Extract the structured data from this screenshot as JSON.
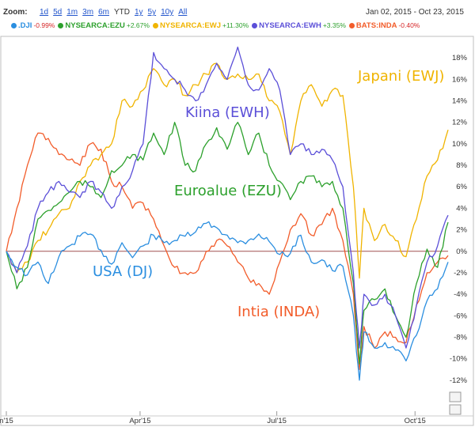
{
  "toolbar": {
    "zoom_label": "Zoom:",
    "zoom_options": [
      "1d",
      "5d",
      "1m",
      "3m",
      "6m",
      "YTD",
      "1y",
      "5y",
      "10y",
      "All"
    ],
    "active_option": "YTD",
    "date_range": "Jan 02, 2015  -  Oct 23, 2015"
  },
  "chart_data": {
    "type": "line",
    "x_ticks": [
      "n'15",
      "Apr'15",
      "Jul'15",
      "Oct'15"
    ],
    "y_ticks": [
      "-12%",
      "-10%",
      "-8%",
      "-6%",
      "-4%",
      "-2%",
      "0%",
      "2%",
      "4%",
      "6%",
      "8%",
      "10%",
      "12%",
      "14%",
      "16%",
      "18%"
    ],
    "ylim": [
      -14,
      20
    ],
    "grid": false,
    "legend_position": "top",
    "series": [
      {
        "name": ".DJI",
        "change": "-0.99%",
        "color": "#2a8ee0",
        "annotation": "USA (DJ)",
        "points": [
          [
            "2015-01-02",
            0
          ],
          [
            "2015-01-09",
            -1.5
          ],
          [
            "2015-01-16",
            -2.2
          ],
          [
            "2015-01-23",
            -1.0
          ],
          [
            "2015-01-30",
            -3.0
          ],
          [
            "2015-02-06",
            -0.5
          ],
          [
            "2015-02-13",
            0.5
          ],
          [
            "2015-02-20",
            1.4
          ],
          [
            "2015-02-27",
            1.6
          ],
          [
            "2015-03-06",
            0.1
          ],
          [
            "2015-03-13",
            -1.2
          ],
          [
            "2015-03-20",
            0.8
          ],
          [
            "2015-03-27",
            -0.6
          ],
          [
            "2015-04-03",
            0.5
          ],
          [
            "2015-04-10",
            1.5
          ],
          [
            "2015-04-17",
            0.8
          ],
          [
            "2015-04-24",
            1.0
          ],
          [
            "2015-05-01",
            1.4
          ],
          [
            "2015-05-08",
            1.8
          ],
          [
            "2015-05-15",
            2.6
          ],
          [
            "2015-05-22",
            2.2
          ],
          [
            "2015-05-29",
            1.5
          ],
          [
            "2015-06-05",
            0.8
          ],
          [
            "2015-06-12",
            1.0
          ],
          [
            "2015-06-19",
            1.6
          ],
          [
            "2015-06-26",
            0.9
          ],
          [
            "2015-07-03",
            -0.3
          ],
          [
            "2015-07-10",
            -0.2
          ],
          [
            "2015-07-17",
            1.5
          ],
          [
            "2015-07-24",
            -1.0
          ],
          [
            "2015-07-31",
            -0.8
          ],
          [
            "2015-08-07",
            -1.8
          ],
          [
            "2015-08-14",
            -1.4
          ],
          [
            "2015-08-21",
            -6.0
          ],
          [
            "2015-08-25",
            -12.0
          ],
          [
            "2015-08-28",
            -7.5
          ],
          [
            "2015-09-04",
            -9.0
          ],
          [
            "2015-09-11",
            -8.5
          ],
          [
            "2015-09-18",
            -9.2
          ],
          [
            "2015-09-25",
            -10.2
          ],
          [
            "2015-10-02",
            -7.8
          ],
          [
            "2015-10-09",
            -4.6
          ],
          [
            "2015-10-16",
            -3.5
          ],
          [
            "2015-10-23",
            -1.0
          ]
        ]
      },
      {
        "name": "NYSEARCA:EZU",
        "change": "+2.67%",
        "color": "#2ca02c",
        "annotation": "Euroalue (EZU)",
        "points": [
          [
            "2015-01-02",
            0
          ],
          [
            "2015-01-09",
            -3.5
          ],
          [
            "2015-01-16",
            -1.5
          ],
          [
            "2015-01-23",
            3.0
          ],
          [
            "2015-01-30",
            3.8
          ],
          [
            "2015-02-06",
            4.5
          ],
          [
            "2015-02-13",
            5.5
          ],
          [
            "2015-02-20",
            6.5
          ],
          [
            "2015-02-27",
            6.0
          ],
          [
            "2015-03-06",
            5.0
          ],
          [
            "2015-03-13",
            7.5
          ],
          [
            "2015-03-20",
            8.0
          ],
          [
            "2015-03-27",
            9.0
          ],
          [
            "2015-04-03",
            8.5
          ],
          [
            "2015-04-10",
            11.0
          ],
          [
            "2015-04-17",
            9.0
          ],
          [
            "2015-04-24",
            12.0
          ],
          [
            "2015-05-01",
            8.0
          ],
          [
            "2015-05-08",
            7.5
          ],
          [
            "2015-05-15",
            10.0
          ],
          [
            "2015-05-22",
            11.5
          ],
          [
            "2015-05-29",
            9.5
          ],
          [
            "2015-06-05",
            12.0
          ],
          [
            "2015-06-12",
            9.0
          ],
          [
            "2015-06-19",
            11.0
          ],
          [
            "2015-06-26",
            8.0
          ],
          [
            "2015-07-03",
            6.5
          ],
          [
            "2015-07-10",
            4.8
          ],
          [
            "2015-07-17",
            6.5
          ],
          [
            "2015-07-24",
            7.0
          ],
          [
            "2015-07-31",
            6.0
          ],
          [
            "2015-08-07",
            6.5
          ],
          [
            "2015-08-14",
            4.0
          ],
          [
            "2015-08-21",
            -3.0
          ],
          [
            "2015-08-25",
            -10.5
          ],
          [
            "2015-08-28",
            -5.5
          ],
          [
            "2015-09-04",
            -4.5
          ],
          [
            "2015-09-11",
            -3.5
          ],
          [
            "2015-09-18",
            -6.0
          ],
          [
            "2015-09-25",
            -8.0
          ],
          [
            "2015-10-02",
            -3.0
          ],
          [
            "2015-10-09",
            0.2
          ],
          [
            "2015-10-16",
            -1.5
          ],
          [
            "2015-10-23",
            2.7
          ]
        ]
      },
      {
        "name": "NYSEARCA:EWJ",
        "change": "+11.30%",
        "color": "#f0b400",
        "annotation": "Japani (EWJ)",
        "points": [
          [
            "2015-01-02",
            0
          ],
          [
            "2015-01-09",
            -2.0
          ],
          [
            "2015-01-16",
            -1.0
          ],
          [
            "2015-01-23",
            1.0
          ],
          [
            "2015-01-30",
            2.0
          ],
          [
            "2015-02-06",
            3.5
          ],
          [
            "2015-02-13",
            4.0
          ],
          [
            "2015-02-20",
            6.5
          ],
          [
            "2015-02-27",
            8.0
          ],
          [
            "2015-03-06",
            9.0
          ],
          [
            "2015-03-13",
            10.0
          ],
          [
            "2015-03-20",
            14.0
          ],
          [
            "2015-03-27",
            13.5
          ],
          [
            "2015-04-03",
            15.0
          ],
          [
            "2015-04-10",
            17.0
          ],
          [
            "2015-04-17",
            15.5
          ],
          [
            "2015-04-24",
            16.0
          ],
          [
            "2015-05-01",
            14.5
          ],
          [
            "2015-05-08",
            15.5
          ],
          [
            "2015-05-15",
            16.5
          ],
          [
            "2015-05-22",
            17.5
          ],
          [
            "2015-05-29",
            16.0
          ],
          [
            "2015-06-05",
            16.5
          ],
          [
            "2015-06-12",
            16.0
          ],
          [
            "2015-06-19",
            16.5
          ],
          [
            "2015-06-26",
            14.0
          ],
          [
            "2015-07-03",
            13.0
          ],
          [
            "2015-07-10",
            9.0
          ],
          [
            "2015-07-17",
            14.0
          ],
          [
            "2015-07-24",
            15.5
          ],
          [
            "2015-07-31",
            13.5
          ],
          [
            "2015-08-07",
            15.0
          ],
          [
            "2015-08-14",
            14.5
          ],
          [
            "2015-08-21",
            6.0
          ],
          [
            "2015-08-25",
            -2.5
          ],
          [
            "2015-08-28",
            4.0
          ],
          [
            "2015-09-04",
            1.0
          ],
          [
            "2015-09-11",
            2.5
          ],
          [
            "2015-09-18",
            1.0
          ],
          [
            "2015-09-25",
            -0.5
          ],
          [
            "2015-10-02",
            3.0
          ],
          [
            "2015-10-09",
            7.0
          ],
          [
            "2015-10-16",
            8.5
          ],
          [
            "2015-10-23",
            11.3
          ]
        ]
      },
      {
        "name": "NYSEARCA:EWH",
        "change": "+3.35%",
        "color": "#5b4fd8",
        "annotation": "Kiina (EWH)",
        "points": [
          [
            "2015-01-02",
            0
          ],
          [
            "2015-01-09",
            -2.0
          ],
          [
            "2015-01-16",
            0.5
          ],
          [
            "2015-01-23",
            4.0
          ],
          [
            "2015-01-30",
            5.5
          ],
          [
            "2015-02-06",
            6.5
          ],
          [
            "2015-02-13",
            5.5
          ],
          [
            "2015-02-20",
            5.0
          ],
          [
            "2015-02-27",
            6.5
          ],
          [
            "2015-03-06",
            5.5
          ],
          [
            "2015-03-13",
            4.0
          ],
          [
            "2015-03-20",
            6.0
          ],
          [
            "2015-03-27",
            7.5
          ],
          [
            "2015-04-03",
            10.0
          ],
          [
            "2015-04-10",
            18.5
          ],
          [
            "2015-04-17",
            17.0
          ],
          [
            "2015-04-24",
            16.0
          ],
          [
            "2015-05-01",
            15.0
          ],
          [
            "2015-05-08",
            14.0
          ],
          [
            "2015-05-15",
            15.5
          ],
          [
            "2015-05-22",
            17.5
          ],
          [
            "2015-05-29",
            16.0
          ],
          [
            "2015-06-05",
            19.0
          ],
          [
            "2015-06-12",
            15.5
          ],
          [
            "2015-06-19",
            15.0
          ],
          [
            "2015-06-26",
            17.0
          ],
          [
            "2015-07-03",
            15.0
          ],
          [
            "2015-07-10",
            9.0
          ],
          [
            "2015-07-17",
            10.0
          ],
          [
            "2015-07-24",
            9.0
          ],
          [
            "2015-07-31",
            9.5
          ],
          [
            "2015-08-07",
            8.5
          ],
          [
            "2015-08-14",
            6.0
          ],
          [
            "2015-08-21",
            -2.0
          ],
          [
            "2015-08-25",
            -9.0
          ],
          [
            "2015-08-28",
            -4.0
          ],
          [
            "2015-09-04",
            -5.0
          ],
          [
            "2015-09-11",
            -4.0
          ],
          [
            "2015-09-18",
            -6.0
          ],
          [
            "2015-09-25",
            -9.0
          ],
          [
            "2015-10-02",
            -5.0
          ],
          [
            "2015-10-09",
            -1.0
          ],
          [
            "2015-10-16",
            0.5
          ],
          [
            "2015-10-23",
            3.35
          ]
        ]
      },
      {
        "name": "BATS:INDA",
        "change": "-0.40%",
        "color": "#f25c2a",
        "annotation": "Intia (INDA)",
        "points": [
          [
            "2015-01-02",
            0
          ],
          [
            "2015-01-09",
            4.0
          ],
          [
            "2015-01-16",
            8.0
          ],
          [
            "2015-01-23",
            11.0
          ],
          [
            "2015-01-30",
            10.5
          ],
          [
            "2015-02-06",
            9.0
          ],
          [
            "2015-02-13",
            8.5
          ],
          [
            "2015-02-20",
            8.0
          ],
          [
            "2015-02-27",
            10.0
          ],
          [
            "2015-03-06",
            9.5
          ],
          [
            "2015-03-13",
            6.5
          ],
          [
            "2015-03-20",
            6.0
          ],
          [
            "2015-03-27",
            4.0
          ],
          [
            "2015-04-03",
            4.5
          ],
          [
            "2015-04-10",
            3.0
          ],
          [
            "2015-04-17",
            0.5
          ],
          [
            "2015-04-24",
            -1.5
          ],
          [
            "2015-05-01",
            -2.0
          ],
          [
            "2015-05-08",
            -2.0
          ],
          [
            "2015-05-15",
            0.0
          ],
          [
            "2015-05-22",
            1.0
          ],
          [
            "2015-05-29",
            0.5
          ],
          [
            "2015-06-05",
            -1.0
          ],
          [
            "2015-06-12",
            -2.5
          ],
          [
            "2015-06-19",
            -3.0
          ],
          [
            "2015-06-26",
            -4.0
          ],
          [
            "2015-07-03",
            -1.0
          ],
          [
            "2015-07-10",
            2.0
          ],
          [
            "2015-07-17",
            3.5
          ],
          [
            "2015-07-24",
            1.5
          ],
          [
            "2015-07-31",
            2.5
          ],
          [
            "2015-08-07",
            4.0
          ],
          [
            "2015-08-14",
            1.0
          ],
          [
            "2015-08-21",
            -4.0
          ],
          [
            "2015-08-25",
            -11.0
          ],
          [
            "2015-08-28",
            -7.0
          ],
          [
            "2015-09-04",
            -9.0
          ],
          [
            "2015-09-11",
            -7.5
          ],
          [
            "2015-09-18",
            -8.0
          ],
          [
            "2015-09-25",
            -8.5
          ],
          [
            "2015-10-02",
            -5.0
          ],
          [
            "2015-10-09",
            -2.0
          ],
          [
            "2015-10-16",
            -1.0
          ],
          [
            "2015-10-23",
            -0.4
          ]
        ]
      }
    ]
  }
}
